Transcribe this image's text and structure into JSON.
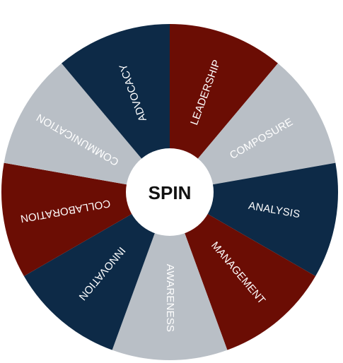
{
  "wheel": {
    "spin_label": "SPIN",
    "segments": [
      {
        "label": "LEADERSHIP",
        "color": "#6b0d04"
      },
      {
        "label": "COMPOSURE",
        "color": "#b9bfc6"
      },
      {
        "label": "ANALYSIS",
        "color": "#0d2a47"
      },
      {
        "label": "MANAGEMENT",
        "color": "#6b0d04"
      },
      {
        "label": "AWARENESS",
        "color": "#b9bfc6"
      },
      {
        "label": "INNOVATION",
        "color": "#0d2a47"
      },
      {
        "label": "COLLABORATION",
        "color": "#6b0d04"
      },
      {
        "label": "COMMUNICATION",
        "color": "#b9bfc6"
      },
      {
        "label": "ADVOCACY",
        "color": "#0d2a47"
      }
    ],
    "hub_color": "#ffffff"
  }
}
